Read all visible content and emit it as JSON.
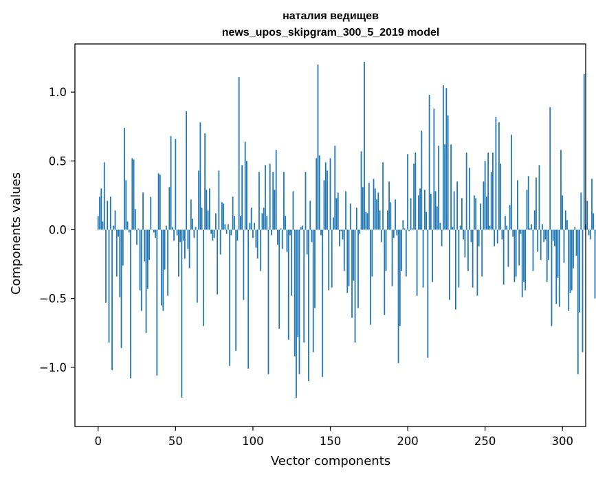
{
  "chart_data": {
    "type": "bar",
    "title": "наталия ведищев",
    "subtitle": "news_upos_skipgram_300_5_2019 model",
    "xlabel": "Vector components",
    "ylabel": "Components values",
    "xlim": [
      -15,
      315
    ],
    "ylim": [
      -1.43,
      1.35
    ],
    "x_ticks": [
      0,
      50,
      100,
      150,
      200,
      250,
      300
    ],
    "x_tick_labels": [
      "0",
      "50",
      "100",
      "150",
      "200",
      "250",
      "300"
    ],
    "y_ticks": [
      -1.0,
      -0.5,
      0.0,
      0.5,
      1.0
    ],
    "y_tick_labels": [
      "−1.0",
      "−0.5",
      "0.0",
      "0.5",
      "1.0"
    ],
    "grid": false,
    "legend": "none",
    "bar_color": "#1f77b4",
    "values": [
      0.1,
      0.24,
      0.3,
      0.06,
      0.49,
      -0.53,
      0.21,
      -0.82,
      0.24,
      -1.02,
      0.03,
      0.14,
      -0.34,
      -0.05,
      -0.49,
      -0.86,
      -0.26,
      0.74,
      0.36,
      0.06,
      -0.02,
      -1.08,
      0.52,
      0.51,
      0.15,
      -0.11,
      0.01,
      -0.44,
      -0.59,
      0.27,
      -0.23,
      -0.75,
      -0.43,
      -0.22,
      0.24,
      0.0,
      -0.02,
      -0.06,
      -1.06,
      0.41,
      0.4,
      -0.55,
      -0.59,
      -0.29,
      0.03,
      -0.48,
      0.31,
      0.68,
      0.02,
      -0.08,
      0.66,
      -0.04,
      -0.34,
      -0.09,
      -1.22,
      -0.08,
      -0.21,
      0.86,
      -0.14,
      -0.28,
      0.22,
      0.08,
      -0.06,
      0.02,
      -0.53,
      0.43,
      0.78,
      0.16,
      -0.7,
      0.7,
      0.29,
      0.14,
      0.3,
      -0.03,
      -0.08,
      -0.06,
      0.12,
      -0.47,
      0.43,
      -0.18,
      0.2,
      0.19,
      0.04,
      -0.03,
      0.04,
      -0.99,
      -0.04,
      0.24,
      0.1,
      -0.88,
      -0.08,
      1.11,
      0.1,
      0.47,
      -0.51,
      0.64,
      0.5,
      -1.01,
      0.05,
      0.16,
      -0.06,
      0.05,
      -0.13,
      -0.21,
      0.42,
      -0.3,
      0.12,
      0.16,
      0.47,
      0.1,
      -1.05,
      0.48,
      -0.04,
      0.42,
      0.29,
      0.58,
      -0.11,
      -0.72,
      0.01,
      -0.14,
      0.42,
      0.1,
      -0.16,
      -0.8,
      -0.04,
      -0.48,
      0.28,
      -0.92,
      -1.22,
      -0.78,
      -1.05,
      0.02,
      0.03,
      -0.82,
      0.42,
      -0.18,
      -1.1,
      0.21,
      -0.09,
      -0.89,
      -0.57,
      0.52,
      1.2,
      0.54,
      -0.04,
      -1.07,
      0.36,
      0.49,
      0.43,
      -0.44,
      0.52,
      -0.42,
      0.09,
      0.61,
      0.23,
      0.27,
      -0.12,
      -0.01,
      -0.07,
      -0.3,
      0.28,
      -0.46,
      -0.41,
      0.19,
      -0.64,
      -0.37,
      -0.82,
      0.16,
      -0.57,
      -0.03,
      0.57,
      0.31,
      1.22,
      0.13,
      0.12,
      0.34,
      -0.69,
      -0.34,
      0.37,
      0.3,
      0.22,
      0.27,
      0.14,
      -0.09,
      0.49,
      -0.62,
      -0.3,
      0.14,
      0.35,
      0.2,
      -0.41,
      -0.06,
      0.22,
      -0.04,
      -0.97,
      -0.7,
      -0.3,
      0.07,
      0.01,
      -0.34,
      0.55,
      -0.01,
      0.23,
      0.01,
      0.48,
      0.56,
      -0.48,
      0.25,
      0.3,
      0.72,
      -0.42,
      0.29,
      0.13,
      -0.93,
      0.98,
      0.26,
      -0.38,
      0.88,
      0.28,
      0.17,
      0.61,
      0.05,
      -0.12,
      1.05,
      0.62,
      1.03,
      0.83,
      -0.51,
      0.62,
      0.02,
      0.28,
      -0.58,
      0.35,
      -0.42,
      0.03,
      0.23,
      -0.07,
      -0.2,
      0.56,
      -0.3,
      0.45,
      -0.09,
      -0.42,
      0.25,
      0.23,
      -0.48,
      -0.12,
      0.19,
      -0.34,
      0.35,
      0.5,
      0.24,
      0.56,
      0.03,
      0.42,
      0.56,
      -0.12,
      0.82,
      -0.1,
      0.78,
      0.48,
      -0.07,
      -0.4,
      0.1,
      0.03,
      -0.27,
      0.18,
      0.69,
      -0.05,
      -0.38,
      -0.34,
      0.36,
      -0.26,
      -0.03,
      -0.49,
      -0.38,
      -0.44,
      0.29,
      0.39,
      0.01,
      0.04,
      -0.3,
      0.14,
      0.38,
      -0.16,
      0.47,
      -0.22,
      0.04,
      -0.09,
      -0.07,
      -0.38,
      -0.22,
      0.89,
      -0.7,
      -0.08,
      -0.12,
      -0.54,
      -0.35,
      -0.56,
      0.58,
      0.25,
      -0.24,
      0.14,
      0.07,
      -0.59,
      -0.46,
      -0.44,
      -0.28,
      0.02,
      -0.19,
      -1.05,
      -0.6,
      0.27,
      -0.89,
      1.13,
      0.04,
      0.21,
      -0.04,
      -0.07,
      0.37,
      0.12,
      -0.5,
      -0.03
    ]
  }
}
